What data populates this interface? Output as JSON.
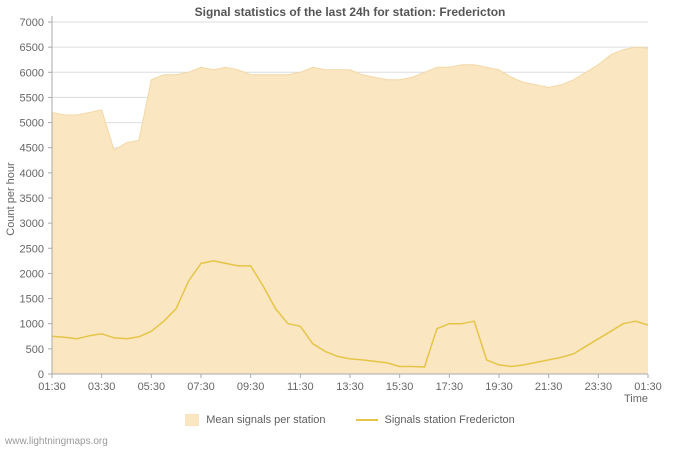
{
  "page": {
    "watermark": "www.lightningmaps.org",
    "background": "#ffffff"
  },
  "chart_data": {
    "type": "area",
    "title": "Signal statistics of the last 24h for station: Fredericton",
    "xlabel": "Time",
    "ylabel": "Count per hour",
    "ylim": [
      0,
      7000
    ],
    "ytick_step": 500,
    "grid": true,
    "legend_position": "bottom",
    "points_per_hour": 2,
    "x_tick_labels": [
      "01:30",
      "03:30",
      "05:30",
      "07:30",
      "09:30",
      "11:30",
      "13:30",
      "15:30",
      "17:30",
      "19:30",
      "21:30",
      "23:30",
      "01:30"
    ],
    "colors": {
      "area_fill": "#fbe6c2",
      "area_edge": "#f3d8a6",
      "line": "#e5c547",
      "grid": "#dddddd",
      "axis": "#aaaaaa",
      "tick_text": "#666666",
      "title_text": "#555555",
      "legend_text": "#5f5f5f",
      "watermark_text": "#999999"
    },
    "series": [
      {
        "name": "Mean signals per station",
        "type": "area",
        "values": [
          5200,
          5150,
          5150,
          5200,
          5250,
          4450,
          4600,
          4650,
          5850,
          5950,
          5950,
          6000,
          6100,
          6050,
          6100,
          6050,
          5950,
          5950,
          5950,
          5950,
          6000,
          6100,
          6050,
          6050,
          6050,
          5950,
          5900,
          5850,
          5850,
          5900,
          6000,
          6100,
          6100,
          6150,
          6150,
          6100,
          6050,
          5900,
          5800,
          5750,
          5700,
          5750,
          5850,
          6000,
          6150,
          6350,
          6450,
          6500,
          6480
        ]
      },
      {
        "name": "Signals station Fredericton",
        "type": "line",
        "values": [
          750,
          730,
          700,
          760,
          800,
          720,
          700,
          740,
          850,
          1050,
          1300,
          1850,
          2200,
          2250,
          2200,
          2150,
          2150,
          1750,
          1300,
          1000,
          950,
          600,
          450,
          350,
          300,
          280,
          250,
          220,
          150,
          150,
          140,
          900,
          1000,
          1000,
          1050,
          280,
          180,
          150,
          180,
          230,
          280,
          330,
          400,
          550,
          700,
          850,
          1000,
          1050,
          975
        ]
      }
    ]
  }
}
